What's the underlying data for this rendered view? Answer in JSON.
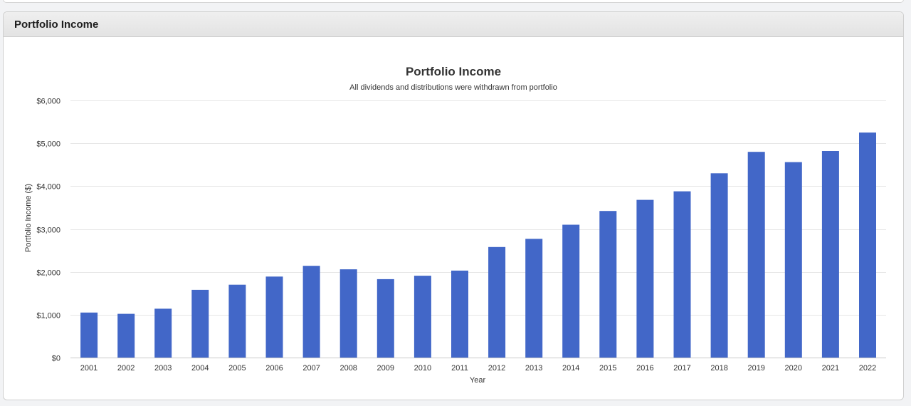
{
  "panel": {
    "title": "Portfolio Income"
  },
  "chart_data": {
    "type": "bar",
    "title": "Portfolio Income",
    "subtitle": "All dividends and distributions were withdrawn from portfolio",
    "xlabel": "Year",
    "ylabel": "Portfolio Income ($)",
    "ylim": [
      0,
      6000
    ],
    "yticks": [
      0,
      1000,
      2000,
      3000,
      4000,
      5000,
      6000
    ],
    "ytick_labels": [
      "$0",
      "$1,000",
      "$2,000",
      "$3,000",
      "$4,000",
      "$5,000",
      "$6,000"
    ],
    "grid": true,
    "bar_color": "#4267c8",
    "categories": [
      "2001",
      "2002",
      "2003",
      "2004",
      "2005",
      "2006",
      "2007",
      "2008",
      "2009",
      "2010",
      "2011",
      "2012",
      "2013",
      "2014",
      "2015",
      "2016",
      "2017",
      "2018",
      "2019",
      "2020",
      "2021",
      "2022"
    ],
    "values": [
      1050,
      1020,
      1140,
      1580,
      1700,
      1890,
      2140,
      2060,
      1830,
      1910,
      2030,
      2580,
      2770,
      3100,
      3420,
      3680,
      3880,
      4300,
      4800,
      4560,
      4820,
      5250
    ]
  }
}
